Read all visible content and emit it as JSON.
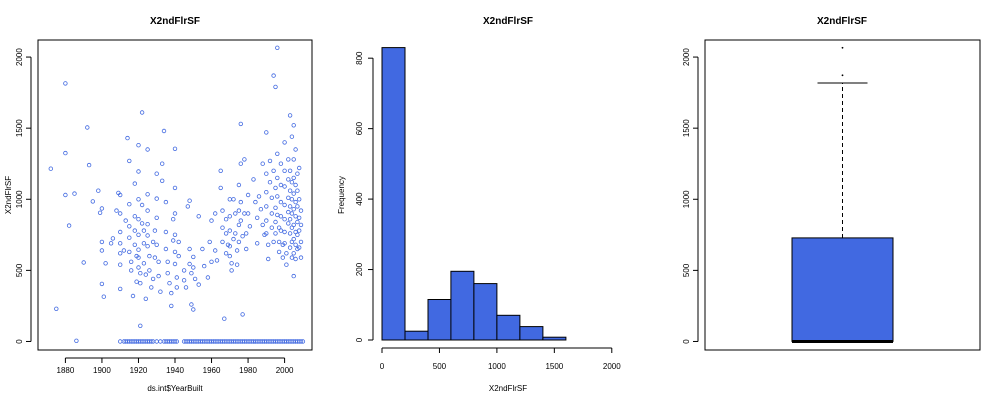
{
  "colors": {
    "accent": "#4169e1",
    "outline": "#000000"
  },
  "chart_data": [
    {
      "type": "scatter",
      "title": "X2ndFlrSF",
      "xlabel": "ds.int$YearBuilt",
      "ylabel": "X2ndFlrSF",
      "xlim": [
        1865,
        2015
      ],
      "ylim": [
        -60,
        2120
      ],
      "xticks": [
        "1880",
        "1900",
        "1920",
        "1940",
        "1960",
        "1980",
        "2000"
      ],
      "yticks": [
        "0",
        "500",
        "1000",
        "1500",
        "2000"
      ],
      "points": [
        [
          1872,
          1215
        ],
        [
          1875,
          230
        ],
        [
          1880,
          1815
        ],
        [
          1880,
          1325
        ],
        [
          1880,
          1030
        ],
        [
          1882,
          815
        ],
        [
          1885,
          1040
        ],
        [
          1886,
          5
        ],
        [
          1890,
          555
        ],
        [
          1892,
          1505
        ],
        [
          1893,
          1240
        ],
        [
          1895,
          985
        ],
        [
          1898,
          1060
        ],
        [
          1899,
          905
        ],
        [
          1900,
          935
        ],
        [
          1900,
          700
        ],
        [
          1900,
          640
        ],
        [
          1900,
          405
        ],
        [
          1901,
          315
        ],
        [
          1902,
          550
        ],
        [
          1905,
          690
        ],
        [
          1906,
          725
        ],
        [
          1908,
          920
        ],
        [
          1909,
          1045
        ],
        [
          1910,
          1030
        ],
        [
          1910,
          900
        ],
        [
          1910,
          770
        ],
        [
          1910,
          690
        ],
        [
          1910,
          620
        ],
        [
          1910,
          540
        ],
        [
          1910,
          370
        ],
        [
          1912,
          640
        ],
        [
          1913,
          850
        ],
        [
          1914,
          1430
        ],
        [
          1915,
          1270
        ],
        [
          1915,
          965
        ],
        [
          1915,
          810
        ],
        [
          1915,
          730
        ],
        [
          1915,
          630
        ],
        [
          1916,
          560
        ],
        [
          1916,
          500
        ],
        [
          1917,
          320
        ],
        [
          1918,
          1110
        ],
        [
          1918,
          880
        ],
        [
          1918,
          780
        ],
        [
          1918,
          680
        ],
        [
          1919,
          600
        ],
        [
          1919,
          420
        ],
        [
          1920,
          1380
        ],
        [
          1920,
          1195
        ],
        [
          1920,
          1000
        ],
        [
          1920,
          860
        ],
        [
          1920,
          750
        ],
        [
          1920,
          645
        ],
        [
          1920,
          590
        ],
        [
          1920,
          520
        ],
        [
          1921,
          480
        ],
        [
          1921,
          410
        ],
        [
          1921,
          110
        ],
        [
          1922,
          1610
        ],
        [
          1922,
          960
        ],
        [
          1922,
          830
        ],
        [
          1923,
          780
        ],
        [
          1923,
          690
        ],
        [
          1923,
          550
        ],
        [
          1924,
          470
        ],
        [
          1924,
          300
        ],
        [
          1925,
          1350
        ],
        [
          1925,
          1035
        ],
        [
          1925,
          920
        ],
        [
          1925,
          825
        ],
        [
          1925,
          745
        ],
        [
          1925,
          670
        ],
        [
          1926,
          600
        ],
        [
          1926,
          500
        ],
        [
          1927,
          380
        ],
        [
          1928,
          440
        ],
        [
          1928,
          700
        ],
        [
          1929,
          780
        ],
        [
          1929,
          590
        ],
        [
          1930,
          1180
        ],
        [
          1930,
          1005
        ],
        [
          1930,
          870
        ],
        [
          1930,
          680
        ],
        [
          1931,
          560
        ],
        [
          1931,
          460
        ],
        [
          1932,
          350
        ],
        [
          1933,
          1250
        ],
        [
          1933,
          1130
        ],
        [
          1934,
          1480
        ],
        [
          1935,
          980
        ],
        [
          1935,
          770
        ],
        [
          1935,
          650
        ],
        [
          1936,
          560
        ],
        [
          1936,
          480
        ],
        [
          1937,
          410
        ],
        [
          1938,
          340
        ],
        [
          1938,
          250
        ],
        [
          1939,
          860
        ],
        [
          1939,
          710
        ],
        [
          1940,
          1355
        ],
        [
          1940,
          1080
        ],
        [
          1940,
          900
        ],
        [
          1940,
          750
        ],
        [
          1940,
          630
        ],
        [
          1940,
          545
        ],
        [
          1941,
          450
        ],
        [
          1941,
          380
        ],
        [
          1942,
          700
        ],
        [
          1942,
          600
        ],
        [
          1945,
          500
        ],
        [
          1945,
          430
        ],
        [
          1946,
          380
        ],
        [
          1947,
          950
        ],
        [
          1948,
          990
        ],
        [
          1948,
          650
        ],
        [
          1948,
          545
        ],
        [
          1949,
          480
        ],
        [
          1949,
          260
        ],
        [
          1950,
          225
        ],
        [
          1950,
          595
        ],
        [
          1950,
          520
        ],
        [
          1951,
          440
        ],
        [
          1953,
          880
        ],
        [
          1953,
          400
        ],
        [
          1955,
          650
        ],
        [
          1956,
          530
        ],
        [
          1958,
          450
        ],
        [
          1959,
          700
        ],
        [
          1960,
          850
        ],
        [
          1960,
          560
        ],
        [
          1962,
          900
        ],
        [
          1962,
          640
        ],
        [
          1963,
          570
        ],
        [
          1965,
          1200
        ],
        [
          1965,
          1080
        ],
        [
          1966,
          920
        ],
        [
          1966,
          800
        ],
        [
          1966,
          700
        ],
        [
          1967,
          160
        ],
        [
          1968,
          860
        ],
        [
          1968,
          760
        ],
        [
          1968,
          620
        ],
        [
          1969,
          680
        ],
        [
          1970,
          1000
        ],
        [
          1970,
          880
        ],
        [
          1970,
          780
        ],
        [
          1970,
          670
        ],
        [
          1970,
          600
        ],
        [
          1971,
          550
        ],
        [
          1971,
          500
        ],
        [
          1972,
          720
        ],
        [
          1972,
          1000
        ],
        [
          1973,
          900
        ],
        [
          1973,
          760
        ],
        [
          1974,
          640
        ],
        [
          1974,
          540
        ],
        [
          1975,
          1100
        ],
        [
          1975,
          920
        ],
        [
          1975,
          820
        ],
        [
          1975,
          700
        ],
        [
          1976,
          1530
        ],
        [
          1976,
          1250
        ],
        [
          1976,
          980
        ],
        [
          1976,
          850
        ],
        [
          1977,
          190
        ],
        [
          1977,
          740
        ],
        [
          1978,
          1280
        ],
        [
          1978,
          900
        ],
        [
          1979,
          760
        ],
        [
          1979,
          650
        ],
        [
          1980,
          1030
        ],
        [
          1980,
          900
        ],
        [
          1981,
          810
        ],
        [
          1983,
          1140
        ],
        [
          1984,
          980
        ],
        [
          1985,
          870
        ],
        [
          1985,
          690
        ],
        [
          1986,
          1020
        ],
        [
          1987,
          930
        ],
        [
          1988,
          1250
        ],
        [
          1988,
          820
        ],
        [
          1989,
          750
        ],
        [
          1990,
          1470
        ],
        [
          1990,
          1180
        ],
        [
          1990,
          1050
        ],
        [
          1990,
          950
        ],
        [
          1990,
          850
        ],
        [
          1990,
          760
        ],
        [
          1991,
          680
        ],
        [
          1991,
          580
        ],
        [
          1992,
          1270
        ],
        [
          1992,
          1120
        ],
        [
          1993,
          1010
        ],
        [
          1993,
          900
        ],
        [
          1993,
          800
        ],
        [
          1994,
          1870
        ],
        [
          1994,
          1200
        ],
        [
          1994,
          700
        ],
        [
          1995,
          1790
        ],
        [
          1995,
          1080
        ],
        [
          1995,
          940
        ],
        [
          1995,
          840
        ],
        [
          1995,
          760
        ],
        [
          1996,
          2065
        ],
        [
          1996,
          1320
        ],
        [
          1996,
          1150
        ],
        [
          1996,
          1020
        ],
        [
          1996,
          890
        ],
        [
          1997,
          800
        ],
        [
          1997,
          700
        ],
        [
          1997,
          630
        ],
        [
          1998,
          1250
        ],
        [
          1998,
          1100
        ],
        [
          1998,
          980
        ],
        [
          1998,
          880
        ],
        [
          1998,
          780
        ],
        [
          1999,
          680
        ],
        [
          1999,
          590
        ],
        [
          2000,
          1400
        ],
        [
          2000,
          1200
        ],
        [
          2000,
          1090
        ],
        [
          2000,
          960
        ],
        [
          2000,
          860
        ],
        [
          2000,
          770
        ],
        [
          2000,
          690
        ],
        [
          2001,
          620
        ],
        [
          2001,
          540
        ],
        [
          2002,
          1280
        ],
        [
          2002,
          1140
        ],
        [
          2002,
          1010
        ],
        [
          2002,
          910
        ],
        [
          2002,
          830
        ],
        [
          2003,
          1590
        ],
        [
          2003,
          1200
        ],
        [
          2003,
          1060
        ],
        [
          2003,
          950
        ],
        [
          2003,
          860
        ],
        [
          2003,
          760
        ],
        [
          2003,
          660
        ],
        [
          2004,
          1440
        ],
        [
          2004,
          1120
        ],
        [
          2004,
          1000
        ],
        [
          2004,
          900
        ],
        [
          2004,
          800
        ],
        [
          2004,
          700
        ],
        [
          2004,
          590
        ],
        [
          2005,
          1520
        ],
        [
          2005,
          1280
        ],
        [
          2005,
          1150
        ],
        [
          2005,
          1040
        ],
        [
          2005,
          930
        ],
        [
          2005,
          820
        ],
        [
          2005,
          720
        ],
        [
          2005,
          620
        ],
        [
          2005,
          460
        ],
        [
          2006,
          1350
        ],
        [
          2006,
          1100
        ],
        [
          2006,
          980
        ],
        [
          2006,
          880
        ],
        [
          2006,
          770
        ],
        [
          2006,
          680
        ],
        [
          2006,
          580
        ],
        [
          2007,
          1180
        ],
        [
          2007,
          1060
        ],
        [
          2007,
          950
        ],
        [
          2007,
          840
        ],
        [
          2007,
          750
        ],
        [
          2007,
          650
        ],
        [
          2008,
          1220
        ],
        [
          2008,
          1000
        ],
        [
          2008,
          870
        ],
        [
          2008,
          780
        ],
        [
          2008,
          660
        ],
        [
          2009,
          920
        ],
        [
          2009,
          820
        ],
        [
          2009,
          700
        ],
        [
          2009,
          590
        ]
      ],
      "zero_points": [
        1910,
        1912,
        1913,
        1914,
        1915,
        1916,
        1917,
        1918,
        1919,
        1920,
        1921,
        1922,
        1923,
        1924,
        1925,
        1926,
        1927,
        1928,
        1930,
        1932,
        1934,
        1935,
        1936,
        1937,
        1938,
        1939,
        1940,
        1941,
        1945,
        1946,
        1947,
        1948,
        1949,
        1950,
        1951,
        1952,
        1953,
        1954,
        1955,
        1956,
        1957,
        1958,
        1959,
        1960,
        1961,
        1962,
        1963,
        1964,
        1965,
        1966,
        1967,
        1968,
        1969,
        1970,
        1971,
        1972,
        1973,
        1974,
        1975,
        1976,
        1977,
        1978,
        1979,
        1980,
        1981,
        1982,
        1983,
        1984,
        1985,
        1986,
        1987,
        1988,
        1989,
        1990,
        1991,
        1992,
        1993,
        1994,
        1995,
        1996,
        1997,
        1998,
        1999,
        2000,
        2001,
        2002,
        2003,
        2004,
        2005,
        2006,
        2007,
        2008,
        2009,
        2010
      ]
    },
    {
      "type": "bar",
      "title": "X2ndFlrSF",
      "xlabel": "X2ndFlrSF",
      "ylabel": "Frequency",
      "xlim": [
        0,
        2200
      ],
      "ylim": [
        0,
        880
      ],
      "xticks": [
        "0",
        "500",
        "1000",
        "1500",
        "2000"
      ],
      "yticks": [
        "0",
        "200",
        "400",
        "600",
        "800"
      ],
      "bin_width": 200,
      "bins": [
        0,
        200,
        400,
        600,
        800,
        1000,
        1200,
        1400
      ],
      "values": [
        830,
        25,
        115,
        195,
        160,
        70,
        38,
        8
      ]
    },
    {
      "type": "box",
      "title": "X2ndFlrSF",
      "ylim": [
        -60,
        2120
      ],
      "yticks": [
        "0",
        "500",
        "1000",
        "1500",
        "2000"
      ],
      "min": 0,
      "q1": 0,
      "median": 0,
      "q3": 728,
      "whisker_high": 1818,
      "outliers": [
        1872,
        2065
      ]
    }
  ]
}
